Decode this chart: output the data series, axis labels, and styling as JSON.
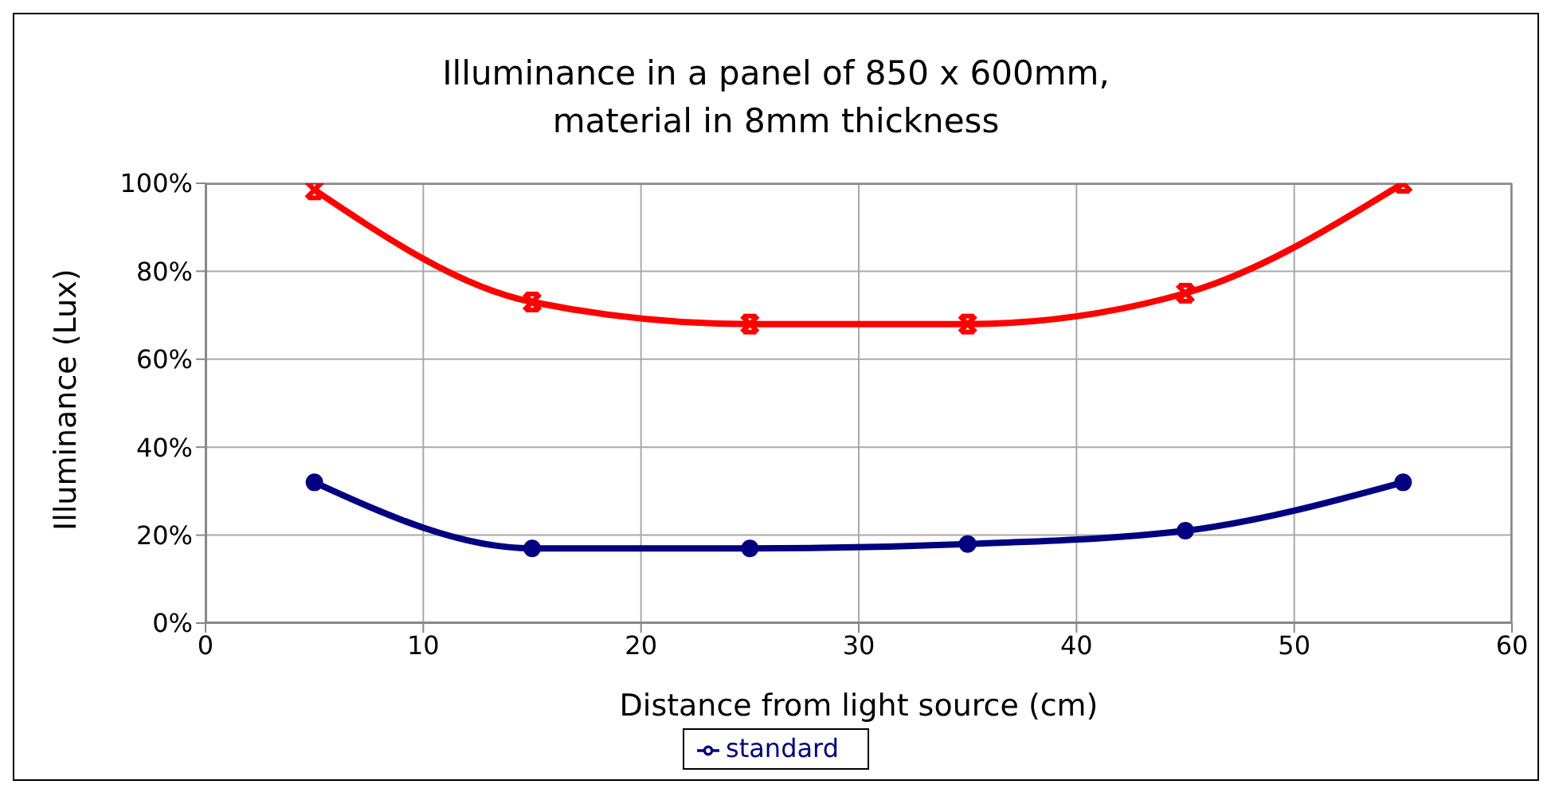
{
  "chart_data": {
    "type": "line",
    "title": "Illuminance in a panel of 850 x 600mm,\nmaterial in 8mm thickness",
    "xlabel": "Distance from light source (cm)",
    "ylabel": "Illuminance (Lux)",
    "x": [
      5,
      15,
      25,
      35,
      45,
      55
    ],
    "series": [
      {
        "name": "standard",
        "color": "#000080",
        "marker": "circle",
        "values": [
          32,
          17,
          17,
          18,
          21,
          32
        ]
      },
      {
        "color": "#ff0000",
        "marker": "cross",
        "values": [
          98.5,
          73,
          68,
          68,
          75,
          100
        ]
      }
    ],
    "xlim": [
      0,
      60
    ],
    "xticks": [
      0,
      10,
      20,
      30,
      40,
      50,
      60
    ],
    "ylim": [
      0,
      100
    ],
    "yticks": [
      {
        "value": 0,
        "label": "0%"
      },
      {
        "value": 20,
        "label": "20%"
      },
      {
        "value": 40,
        "label": "40%"
      },
      {
        "value": 60,
        "label": "60%"
      },
      {
        "value": 80,
        "label": "80%"
      },
      {
        "value": 100,
        "label": "100%"
      }
    ],
    "grid": true,
    "legend": "bottom",
    "line_style": "solid"
  }
}
